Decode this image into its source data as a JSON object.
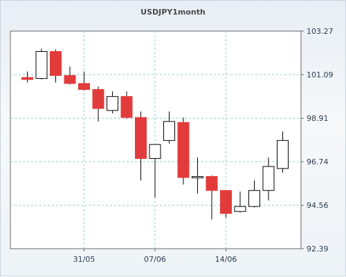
{
  "chart_data": {
    "type": "candlestick",
    "title": "USDJPY1month",
    "xlabel": "",
    "ylabel": "",
    "ylim": [
      92.39,
      103.27
    ],
    "y_ticks": [
      "103.27",
      "101.09",
      "98.91",
      "96.74",
      "94.56",
      "92.39"
    ],
    "x_ticks": [
      {
        "label": "31/05",
        "index": 4
      },
      {
        "label": "07/06",
        "index": 9
      },
      {
        "label": "14/06",
        "index": 14
      }
    ],
    "grid": true,
    "colors": {
      "bull": "#ffffff",
      "bear": "#e23b3b",
      "outline": "#000000",
      "grid": "#8ecfcf"
    },
    "candles": [
      {
        "o": 100.95,
        "h": 101.25,
        "l": 100.7,
        "c": 100.85
      },
      {
        "o": 100.9,
        "h": 102.4,
        "l": 100.85,
        "c": 102.25
      },
      {
        "o": 102.25,
        "h": 102.35,
        "l": 100.7,
        "c": 101.05
      },
      {
        "o": 101.05,
        "h": 101.5,
        "l": 100.6,
        "c": 100.65
      },
      {
        "o": 100.65,
        "h": 101.25,
        "l": 100.3,
        "c": 100.35
      },
      {
        "o": 100.35,
        "h": 100.5,
        "l": 98.75,
        "c": 99.4
      },
      {
        "o": 99.3,
        "h": 100.25,
        "l": 99.15,
        "c": 100.0
      },
      {
        "o": 100.0,
        "h": 100.25,
        "l": 98.9,
        "c": 98.95
      },
      {
        "o": 98.95,
        "h": 99.25,
        "l": 95.8,
        "c": 96.9
      },
      {
        "o": 96.9,
        "h": 97.6,
        "l": 94.95,
        "c": 97.6
      },
      {
        "o": 97.8,
        "h": 99.25,
        "l": 97.65,
        "c": 98.75
      },
      {
        "o": 98.7,
        "h": 98.95,
        "l": 95.6,
        "c": 95.95
      },
      {
        "o": 96.0,
        "h": 96.95,
        "l": 95.15,
        "c": 96.0
      },
      {
        "o": 96.0,
        "h": 96.05,
        "l": 93.85,
        "c": 95.3
      },
      {
        "o": 95.3,
        "h": 95.3,
        "l": 93.95,
        "c": 94.15
      },
      {
        "o": 94.25,
        "h": 95.25,
        "l": 94.2,
        "c": 94.5
      },
      {
        "o": 94.5,
        "h": 95.8,
        "l": 94.45,
        "c": 95.3
      },
      {
        "o": 95.3,
        "h": 96.95,
        "l": 94.8,
        "c": 96.5
      },
      {
        "o": 96.4,
        "h": 98.25,
        "l": 96.2,
        "c": 97.8
      }
    ]
  }
}
